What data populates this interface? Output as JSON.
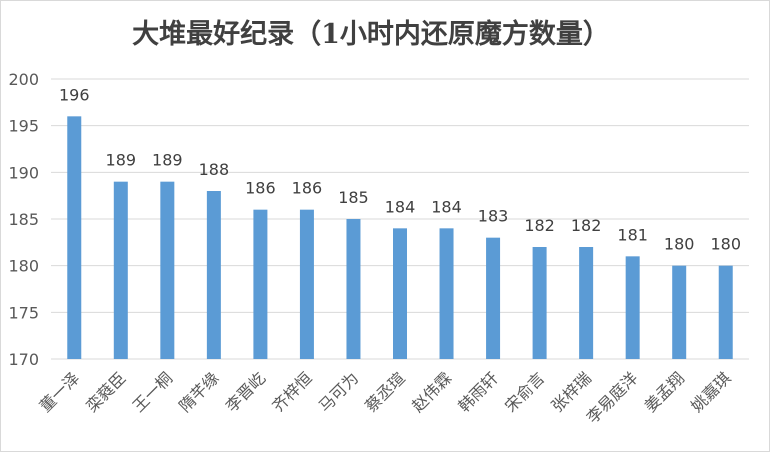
{
  "chart_data": {
    "type": "bar",
    "title": "大堆最好纪录（1小时内还原魔方数量）",
    "xlabel": "",
    "ylabel": "",
    "categories": [
      "董一泽",
      "栾蕤臣",
      "王一桐",
      "隋芊缘",
      "李晋屹",
      "齐梓恒",
      "马可为",
      "蔡丞瑄",
      "赵伟霖",
      "韩雨轩",
      "宋俞言",
      "张梓瑞",
      "李易庭洋",
      "姜孟翔",
      "姚嘉琪"
    ],
    "values": [
      196,
      189,
      189,
      188,
      186,
      186,
      185,
      184,
      184,
      183,
      182,
      182,
      181,
      180,
      180
    ],
    "ylim": [
      170,
      200
    ],
    "yticks": [
      170,
      175,
      180,
      185,
      190,
      195,
      200
    ],
    "grid": true,
    "legend": "none",
    "bar_color": "#5b9bd5"
  }
}
